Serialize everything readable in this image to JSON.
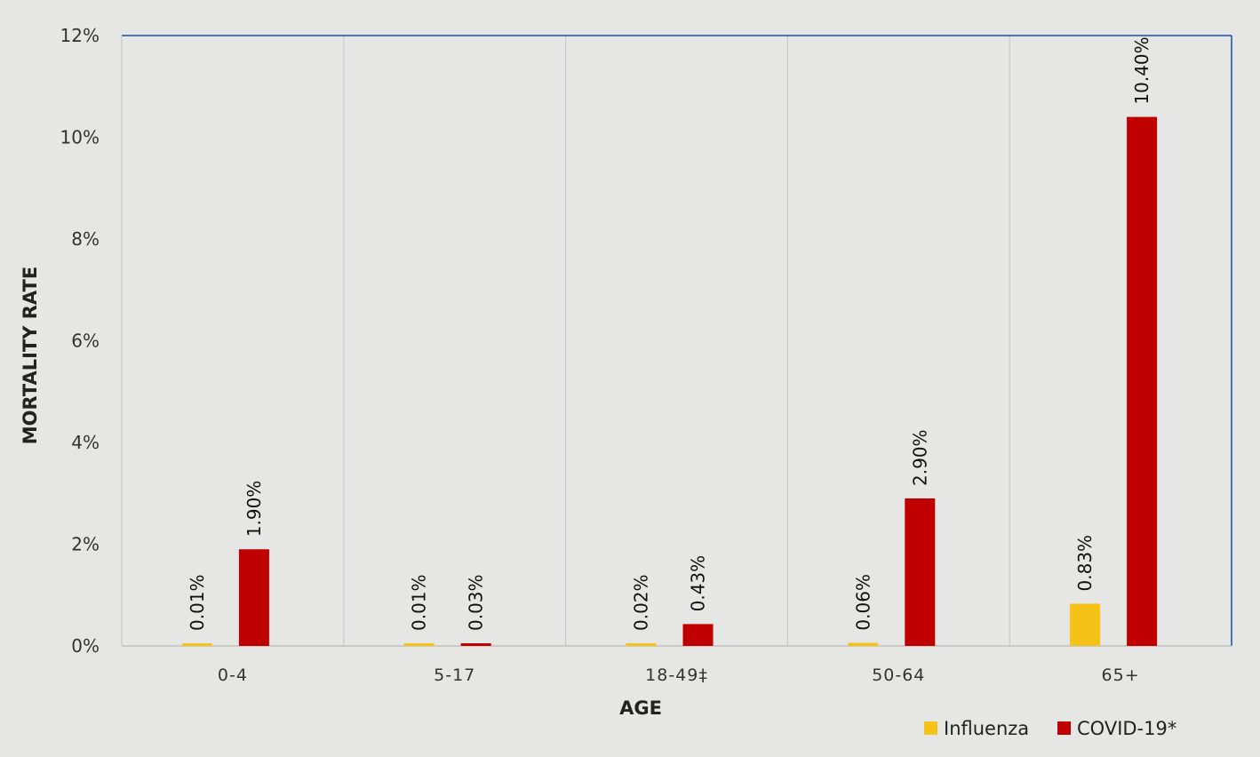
{
  "chart_data": {
    "type": "bar",
    "categories": [
      "0-4",
      "5-17",
      "18-49‡",
      "50-64",
      "65+"
    ],
    "series": [
      {
        "name": "Influenza",
        "color": "#f5c218",
        "values": [
          0.01,
          0.01,
          0.02,
          0.06,
          0.83
        ],
        "labels": [
          "0.01%",
          "0.01%",
          "0.02%",
          "0.06%",
          "0.83%"
        ]
      },
      {
        "name": "COVID-19*",
        "color": "#c00000",
        "values": [
          1.9,
          0.03,
          0.43,
          2.9,
          10.4
        ],
        "labels": [
          "1.90%",
          "0.03%",
          "0.43%",
          "2.90%",
          "10.40%"
        ]
      }
    ],
    "xlabel": "AGE",
    "ylabel": "MORTALITY RATE",
    "ylim": [
      0,
      12
    ],
    "yticks": [
      "0%",
      "2%",
      "4%",
      "6%",
      "8%",
      "10%",
      "12%"
    ],
    "grid": "vertical",
    "legend": "bottom-right",
    "frame_color": "#4a72b8",
    "grid_color": "#c4c8d0"
  }
}
